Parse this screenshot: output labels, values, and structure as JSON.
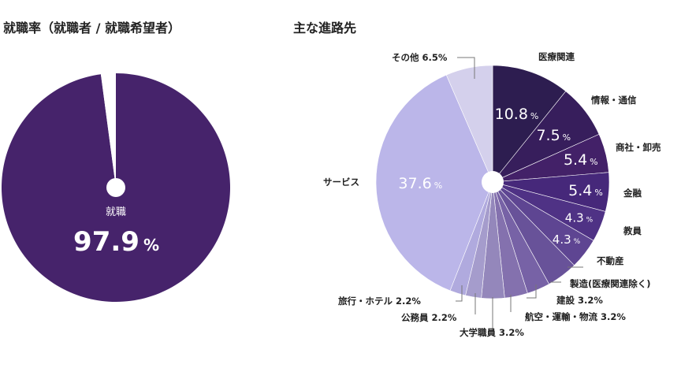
{
  "left": {
    "title": "就職率（就職者 / 就職希望者）",
    "center_label": "就職",
    "value_text": "97.9",
    "unit": "%"
  },
  "right": {
    "title": "主な進路先"
  },
  "chart_data": [
    {
      "type": "pie",
      "title": "就職率（就職者 / 就職希望者）",
      "slices": [
        {
          "name": "就職",
          "value": 97.9,
          "color": "#46236b"
        },
        {
          "name": "",
          "value": 2.1,
          "color": "#ffffff"
        }
      ]
    },
    {
      "type": "pie",
      "title": "主な進路先",
      "slices": [
        {
          "name": "医療関連",
          "value": 10.8,
          "color": "#2d1d50"
        },
        {
          "name": "情報・通信",
          "value": 7.5,
          "color": "#371e5c"
        },
        {
          "name": "商社・卸売",
          "value": 5.4,
          "color": "#432168"
        },
        {
          "name": "金融",
          "value": 5.4,
          "color": "#46287a"
        },
        {
          "name": "教員",
          "value": 4.3,
          "color": "#4f3285"
        },
        {
          "name": "不動産",
          "value": 4.3,
          "color": "#5e4592"
        },
        {
          "name": "製造(医療関連除く)",
          "value": 4.3,
          "color": "#685299"
        },
        {
          "name": "建設",
          "value": 3.2,
          "color": "#7762a6"
        },
        {
          "name": "航空・運輸・物流",
          "value": 3.2,
          "color": "#8471ae"
        },
        {
          "name": "大学職員",
          "value": 3.2,
          "color": "#9487bb"
        },
        {
          "name": "公務員",
          "value": 2.2,
          "color": "#a59ccc"
        },
        {
          "name": "旅行・ホテル",
          "value": 2.2,
          "color": "#b0aade"
        },
        {
          "name": "サービス",
          "value": 37.6,
          "color": "#bbb6e9"
        },
        {
          "name": "その他",
          "value": 6.5,
          "color": "#d4d0ec"
        }
      ],
      "inside_labels": [
        {
          "value": "10.8",
          "unit": "%"
        },
        {
          "value": "7.5",
          "unit": "%"
        },
        {
          "value": "5.4",
          "unit": "%"
        },
        {
          "value": "5.4",
          "unit": "%"
        },
        {
          "value": "4.3",
          "unit": "%"
        },
        {
          "value": "4.3",
          "unit": "%"
        },
        {
          "value": "37.6",
          "unit": "%"
        }
      ],
      "outside_labels": [
        "医療関連",
        "情報・通信",
        "商社・卸売",
        "金融",
        "教員",
        "不動産",
        "製造(医療関連除く)",
        "建設 3.2%",
        "航空・運輸・物流 3.2%",
        "大学職員 3.2%",
        "公務員 2.2%",
        "旅行・ホテル 2.2%",
        "サービス",
        "その他 6.5%"
      ]
    }
  ]
}
